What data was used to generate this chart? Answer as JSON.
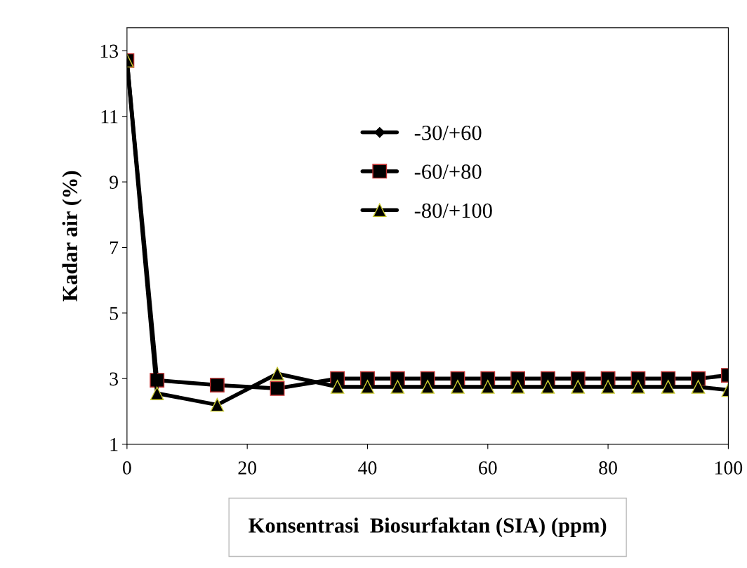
{
  "chart_data": {
    "type": "line",
    "xlabel": "Konsentrasi  Biosurfaktan (SIA) (ppm)",
    "ylabel": "Kadar air (%)",
    "x": [
      0,
      5,
      15,
      25,
      35,
      40,
      45,
      50,
      55,
      60,
      65,
      70,
      75,
      80,
      85,
      90,
      95,
      100
    ],
    "series": [
      {
        "name": "-30/+60",
        "color": "#000000",
        "marker": "diamond",
        "values": [
          null,
          null,
          null,
          null,
          null,
          null,
          null,
          null,
          null,
          null,
          null,
          null,
          null,
          null,
          null,
          null,
          null,
          null
        ]
      },
      {
        "name": "-60/+80",
        "color": "#000000",
        "marker": "square",
        "values": [
          12.7,
          2.95,
          2.8,
          2.7,
          3.0,
          3.0,
          3.0,
          3.0,
          3.0,
          3.0,
          3.0,
          3.0,
          3.0,
          3.0,
          3.0,
          3.0,
          3.0,
          3.1
        ]
      },
      {
        "name": "-80/+100",
        "color": "#000000",
        "marker": "triangle",
        "values": [
          12.7,
          2.55,
          2.2,
          3.15,
          2.75,
          2.75,
          2.75,
          2.75,
          2.75,
          2.75,
          2.75,
          2.75,
          2.75,
          2.75,
          2.75,
          2.75,
          2.75,
          2.65
        ]
      }
    ],
    "xlim": [
      0,
      100
    ],
    "xticks": [
      0,
      20,
      40,
      60,
      80,
      100
    ],
    "ylim": [
      1,
      13.7
    ],
    "yticks": [
      1,
      3,
      5,
      7,
      9,
      11,
      13
    ],
    "grid": false,
    "legend": "center",
    "line_style": "solid"
  }
}
